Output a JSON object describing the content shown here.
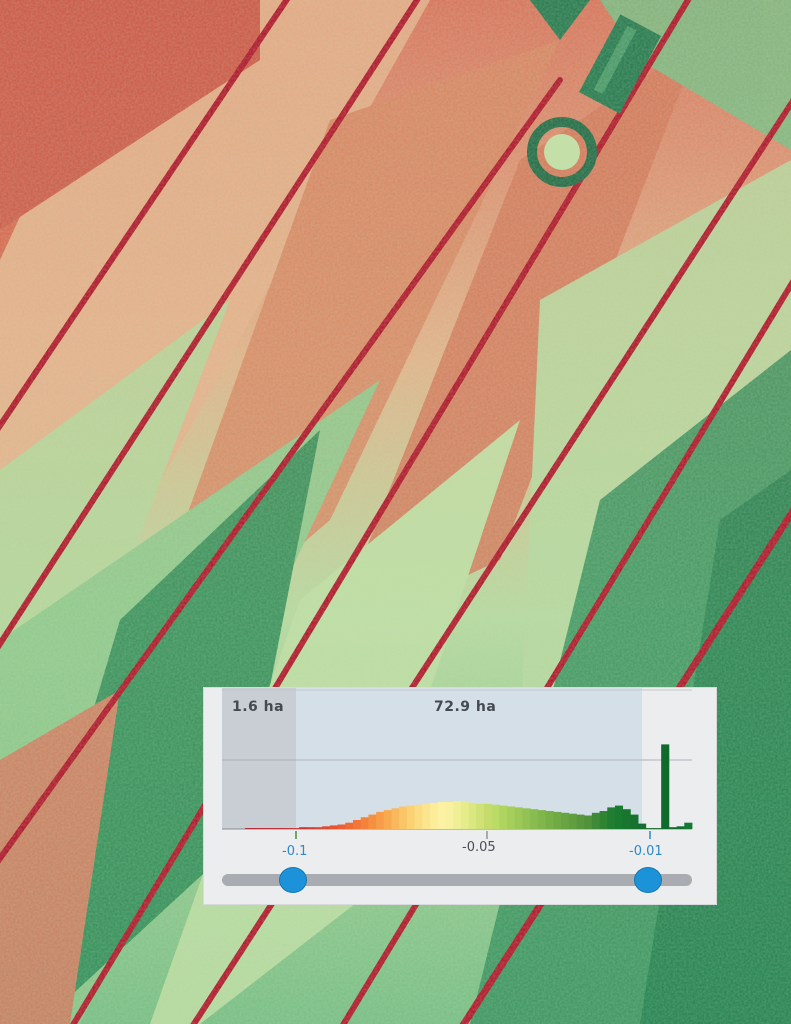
{
  "map": {
    "layer": "vegetation-index raster (red = low, green = high)",
    "palette": {
      "low": "#c0202a",
      "mid_low": "#d9694a",
      "mid": "#eef0a0",
      "mid_high": "#a9d28a",
      "high": "#1a7a4a"
    }
  },
  "histogram": {
    "left_area_label": "1.6 ha",
    "selected_area_label": "72.9 ha",
    "x_min": -0.125,
    "x_max": -0.003,
    "tick_labels": {
      "min_handle": "-0.1",
      "center": "-0.05",
      "max_handle": "-0.01"
    },
    "handles": {
      "min": -0.1,
      "max": -0.01
    },
    "colors": {
      "selected_band": "#d5dfe8",
      "excluded_left": "#c9cdd4",
      "handle": "#1c92d8",
      "track": "#a9adb1"
    }
  },
  "chart_data": {
    "type": "bar",
    "title": "",
    "xlabel": "",
    "ylabel": "",
    "xlim": [
      -0.125,
      -0.003
    ],
    "ylim": [
      0,
      100
    ],
    "x": [
      -0.118,
      -0.116,
      -0.114,
      -0.112,
      -0.11,
      -0.108,
      -0.106,
      -0.104,
      -0.102,
      -0.1,
      -0.098,
      -0.096,
      -0.094,
      -0.092,
      -0.09,
      -0.088,
      -0.086,
      -0.084,
      -0.082,
      -0.08,
      -0.078,
      -0.076,
      -0.074,
      -0.072,
      -0.07,
      -0.068,
      -0.066,
      -0.064,
      -0.062,
      -0.06,
      -0.058,
      -0.056,
      -0.054,
      -0.052,
      -0.05,
      -0.048,
      -0.046,
      -0.044,
      -0.042,
      -0.04,
      -0.038,
      -0.036,
      -0.034,
      -0.032,
      -0.03,
      -0.028,
      -0.026,
      -0.024,
      -0.022,
      -0.02,
      -0.018,
      -0.016,
      -0.014,
      -0.012,
      -0.01,
      -0.008,
      -0.006,
      -0.004
    ],
    "values": [
      1,
      1,
      1,
      1,
      1,
      1,
      1,
      2,
      2,
      2,
      3,
      4,
      5,
      7,
      10,
      13,
      16,
      19,
      21,
      23,
      25,
      26,
      27,
      28,
      29,
      30,
      30,
      31,
      30,
      29,
      28,
      28,
      27,
      26,
      25,
      24,
      23,
      22,
      21,
      20,
      19,
      18,
      17,
      16,
      15,
      18,
      20,
      24,
      26,
      22,
      16,
      6,
      1,
      1,
      94,
      2,
      3,
      7
    ],
    "bar_colors": [
      "#b01c28",
      "#b41d28",
      "#b81e29",
      "#bc1f29",
      "#c0202a",
      "#c6262b",
      "#cc2c2d",
      "#d2332e",
      "#d83a2f",
      "#de4230",
      "#e34a30",
      "#e85431",
      "#ec5e33",
      "#ef6a35",
      "#f17638",
      "#f3833c",
      "#f59041",
      "#f79d48",
      "#f8aa50",
      "#f9b85b",
      "#fac566",
      "#fbd273",
      "#fcdc80",
      "#fde58d",
      "#fdec98",
      "#fdf1a4",
      "#f8f2a0",
      "#f0ef95",
      "#e6ec8a",
      "#dbe77f",
      "#d0e176",
      "#c5dc6d",
      "#badb66",
      "#afd460",
      "#a5ce5b",
      "#9bc857",
      "#92c253",
      "#89bc4f",
      "#80b64b",
      "#78b048",
      "#70aa45",
      "#68a442",
      "#609e40",
      "#58983d",
      "#50923b",
      "#3f8a37",
      "#2f8433",
      "#217e31",
      "#1a7a30",
      "#18762f",
      "#16722e",
      "#146e2d",
      "#136b2c",
      "#136b2c",
      "#0f6a2c",
      "#136b2c",
      "#13702e",
      "#137a33"
    ]
  }
}
